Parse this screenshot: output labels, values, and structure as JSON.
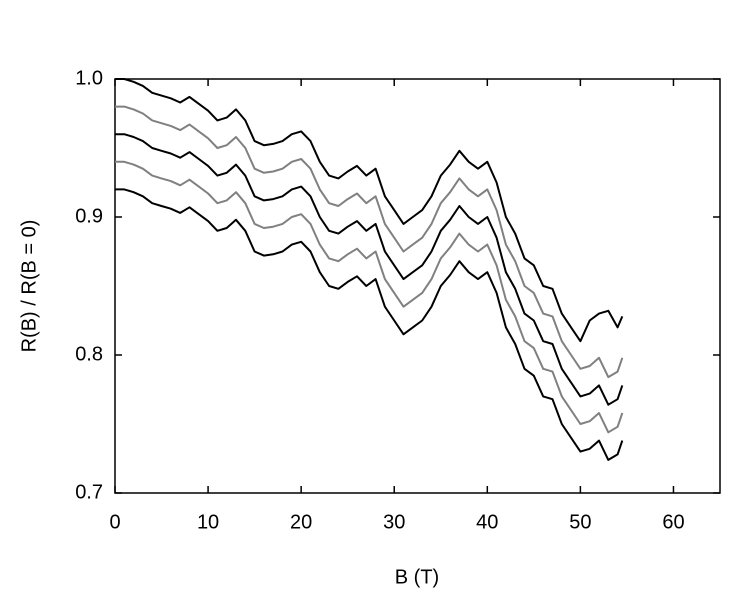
{
  "chart_data": {
    "type": "line",
    "xlabel": "B (T)",
    "ylabel": "R(B) / R(B = 0)",
    "xlim": [
      0,
      65
    ],
    "ylim": [
      0.7,
      1.0
    ],
    "xticks": [
      0,
      10,
      20,
      30,
      40,
      50,
      60
    ],
    "yticks": [
      0.7,
      0.8,
      0.9,
      {
        "value": 1,
        "label": "1.0"
      }
    ],
    "x": [
      0,
      1,
      2,
      3,
      4,
      5,
      6,
      7,
      8,
      9,
      10,
      11,
      12,
      13,
      14,
      15,
      16,
      17,
      18,
      19,
      20,
      21,
      22,
      23,
      24,
      25,
      26,
      27,
      28,
      29,
      30,
      31,
      32,
      33,
      34,
      35,
      36,
      37,
      38,
      39,
      40,
      41,
      42,
      43,
      44,
      45,
      46,
      47,
      48,
      49,
      50,
      51,
      52,
      53,
      54,
      54.5
    ],
    "series": [
      {
        "color": "#000000",
        "values": [
          1.0,
          1.0,
          0.998,
          0.995,
          0.99,
          0.988,
          0.986,
          0.983,
          0.987,
          0.982,
          0.977,
          0.97,
          0.972,
          0.978,
          0.97,
          0.955,
          0.952,
          0.953,
          0.955,
          0.96,
          0.962,
          0.955,
          0.94,
          0.93,
          0.928,
          0.933,
          0.937,
          0.93,
          0.935,
          0.915,
          0.905,
          0.895,
          0.9,
          0.905,
          0.915,
          0.93,
          0.938,
          0.948,
          0.94,
          0.935,
          0.94,
          0.925,
          0.9,
          0.888,
          0.87,
          0.865,
          0.85,
          0.848,
          0.83,
          0.82,
          0.81,
          0.825,
          0.83,
          0.832,
          0.82,
          0.828
        ]
      },
      {
        "color": "#808080",
        "values": [
          0.98,
          0.98,
          0.978,
          0.975,
          0.97,
          0.968,
          0.966,
          0.963,
          0.967,
          0.962,
          0.957,
          0.95,
          0.952,
          0.958,
          0.95,
          0.935,
          0.932,
          0.933,
          0.935,
          0.94,
          0.942,
          0.935,
          0.92,
          0.91,
          0.908,
          0.913,
          0.917,
          0.91,
          0.915,
          0.895,
          0.885,
          0.875,
          0.88,
          0.885,
          0.895,
          0.91,
          0.918,
          0.928,
          0.92,
          0.915,
          0.92,
          0.905,
          0.88,
          0.868,
          0.85,
          0.845,
          0.83,
          0.828,
          0.81,
          0.8,
          0.79,
          0.792,
          0.798,
          0.784,
          0.788,
          0.798
        ]
      },
      {
        "color": "#000000",
        "values": [
          0.96,
          0.96,
          0.958,
          0.955,
          0.95,
          0.948,
          0.946,
          0.943,
          0.947,
          0.942,
          0.937,
          0.93,
          0.932,
          0.938,
          0.93,
          0.915,
          0.912,
          0.913,
          0.915,
          0.92,
          0.922,
          0.915,
          0.9,
          0.89,
          0.888,
          0.893,
          0.897,
          0.89,
          0.895,
          0.875,
          0.865,
          0.855,
          0.86,
          0.865,
          0.875,
          0.89,
          0.898,
          0.908,
          0.9,
          0.895,
          0.9,
          0.885,
          0.86,
          0.848,
          0.83,
          0.825,
          0.81,
          0.808,
          0.79,
          0.78,
          0.77,
          0.772,
          0.778,
          0.764,
          0.768,
          0.778
        ]
      },
      {
        "color": "#808080",
        "values": [
          0.94,
          0.94,
          0.938,
          0.935,
          0.93,
          0.928,
          0.926,
          0.923,
          0.927,
          0.922,
          0.917,
          0.91,
          0.912,
          0.918,
          0.91,
          0.895,
          0.892,
          0.893,
          0.895,
          0.9,
          0.902,
          0.895,
          0.88,
          0.87,
          0.868,
          0.873,
          0.877,
          0.87,
          0.875,
          0.855,
          0.845,
          0.835,
          0.84,
          0.845,
          0.855,
          0.87,
          0.878,
          0.888,
          0.88,
          0.875,
          0.88,
          0.865,
          0.84,
          0.828,
          0.81,
          0.805,
          0.79,
          0.788,
          0.77,
          0.76,
          0.75,
          0.752,
          0.758,
          0.744,
          0.748,
          0.758
        ]
      },
      {
        "color": "#000000",
        "values": [
          0.92,
          0.92,
          0.918,
          0.915,
          0.91,
          0.908,
          0.906,
          0.903,
          0.907,
          0.902,
          0.897,
          0.89,
          0.892,
          0.898,
          0.89,
          0.875,
          0.872,
          0.873,
          0.875,
          0.88,
          0.882,
          0.875,
          0.86,
          0.85,
          0.848,
          0.853,
          0.857,
          0.85,
          0.855,
          0.835,
          0.825,
          0.815,
          0.82,
          0.825,
          0.835,
          0.85,
          0.858,
          0.868,
          0.86,
          0.855,
          0.86,
          0.845,
          0.82,
          0.808,
          0.79,
          0.785,
          0.77,
          0.768,
          0.75,
          0.74,
          0.73,
          0.732,
          0.738,
          0.724,
          0.728,
          0.738
        ]
      }
    ]
  }
}
